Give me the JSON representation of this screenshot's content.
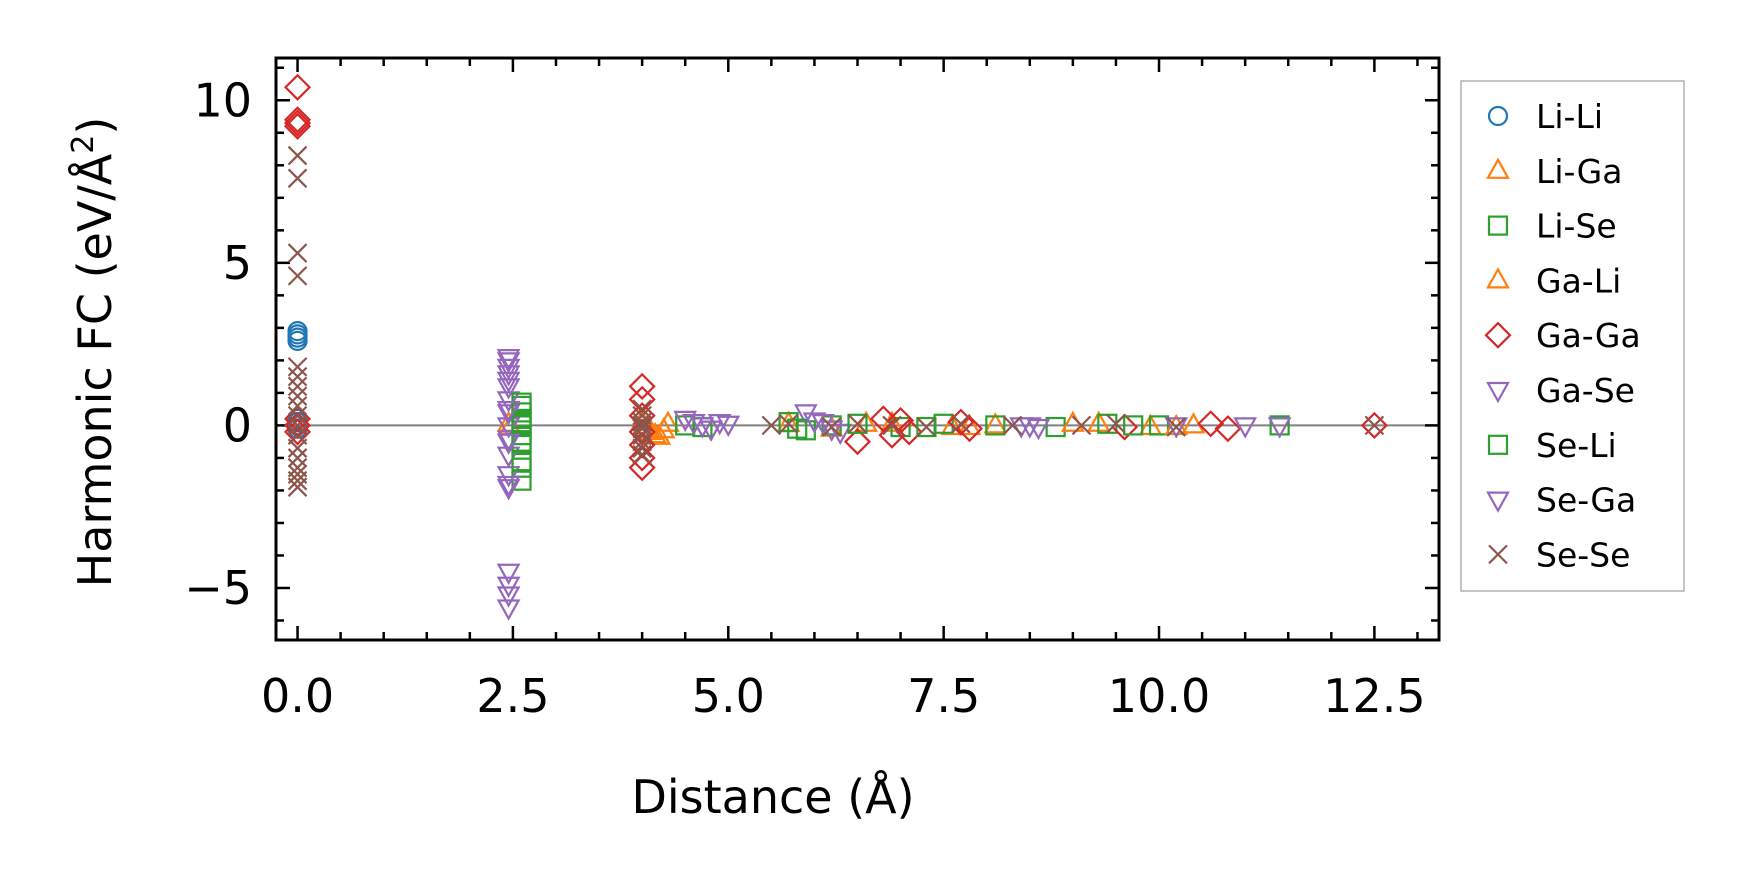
{
  "chart_data": {
    "type": "scatter",
    "xlabel": "Distance (Å)",
    "ylabel": "Harmonic FC (eV/Å²)",
    "ylabel_base": "Harmonic FC (eV/Å",
    "ylabel_sup": "2",
    "ylabel_tail": ")",
    "xlim": [
      -0.25,
      13.25
    ],
    "ylim": [
      -6.6,
      11.3
    ],
    "x_ticks": [
      0.0,
      2.5,
      5.0,
      7.5,
      10.0,
      12.5
    ],
    "x_tick_labels": [
      "0.0",
      "2.5",
      "5.0",
      "7.5",
      "10.0",
      "12.5"
    ],
    "y_ticks": [
      -5,
      0,
      5,
      10
    ],
    "y_tick_labels": [
      "−5",
      "0",
      "5",
      "10"
    ],
    "grid": false,
    "zero_line": true,
    "legend_position": "right-outside",
    "series": [
      {
        "name": "Li-Li",
        "marker": "circle",
        "color": "#1f77b4",
        "x": [
          0.0,
          0.0,
          0.0,
          0.0,
          0.0,
          0.0,
          0.0,
          0.0
        ],
        "y": [
          2.9,
          2.8,
          2.7,
          2.6,
          0.2,
          0.1,
          0.0,
          -0.1
        ]
      },
      {
        "name": "Li-Ga",
        "marker": "triangle-up",
        "color": "#ff7f0e",
        "x": [
          2.45,
          2.47,
          4.0,
          4.1,
          4.2,
          4.3,
          5.7,
          6.2,
          6.9,
          7.6,
          8.1,
          9.3,
          9.9,
          10.4
        ],
        "y": [
          0.05,
          -0.05,
          0.1,
          -0.2,
          -0.35,
          0.05,
          0.05,
          -0.1,
          0.05,
          -0.05,
          0.0,
          0.05,
          -0.05,
          0.0
        ]
      },
      {
        "name": "Li-Se",
        "marker": "square",
        "color": "#2ca02c",
        "x": [
          2.6,
          2.6,
          2.6,
          2.6,
          2.6,
          2.6,
          2.6,
          2.6,
          4.5,
          4.7,
          5.7,
          5.9,
          6.2,
          7.0,
          7.5,
          8.1,
          8.8,
          9.4,
          10.0,
          11.4
        ],
        "y": [
          0.6,
          0.4,
          0.2,
          0.0,
          -0.3,
          -0.6,
          -1.3,
          -1.7,
          0.0,
          -0.05,
          0.1,
          -0.15,
          0.0,
          -0.05,
          0.05,
          0.0,
          -0.05,
          0.05,
          0.0,
          0.0
        ]
      },
      {
        "name": "Ga-Li",
        "marker": "triangle-up",
        "color": "#ff7f0e",
        "x": [
          4.05,
          4.15,
          4.25,
          6.6,
          7.8,
          9.0,
          10.2
        ],
        "y": [
          -0.1,
          -0.3,
          -0.15,
          0.05,
          -0.05,
          0.05,
          -0.05
        ]
      },
      {
        "name": "Ga-Ga",
        "marker": "diamond",
        "color": "#d62728",
        "x": [
          0.0,
          0.0,
          0.0,
          0.0,
          0.0,
          0.0,
          0.0,
          4.0,
          4.0,
          4.0,
          4.0,
          4.0,
          4.0,
          4.0,
          6.5,
          6.8,
          6.9,
          7.0,
          7.1,
          7.7,
          7.8,
          9.6,
          10.6,
          10.8,
          12.5
        ],
        "y": [
          10.4,
          9.4,
          9.3,
          9.2,
          0.2,
          0.0,
          -0.2,
          1.2,
          0.8,
          0.3,
          -0.2,
          -0.6,
          -1.0,
          -1.3,
          -0.5,
          0.2,
          -0.3,
          0.15,
          -0.2,
          0.1,
          -0.1,
          -0.05,
          0.05,
          -0.1,
          0.0
        ]
      },
      {
        "name": "Ga-Se",
        "marker": "triangle-down",
        "color": "#9467bd",
        "x": [
          2.45,
          2.45,
          2.45,
          2.45,
          2.45,
          2.45,
          2.45,
          2.45,
          2.45,
          2.45,
          2.45,
          2.45,
          2.45,
          2.45,
          2.45,
          4.5,
          4.7,
          4.9,
          5.9,
          6.1,
          6.3,
          8.4,
          8.6,
          10.2,
          11.0,
          11.4
        ],
        "y": [
          2.0,
          1.8,
          1.6,
          1.2,
          0.8,
          0.4,
          0.0,
          -0.4,
          -0.9,
          -1.5,
          -1.9,
          -4.5,
          -4.9,
          -5.2,
          -5.6,
          0.2,
          0.0,
          0.1,
          0.4,
          0.1,
          -0.2,
          0.0,
          -0.05,
          0.0,
          0.0,
          0.0
        ]
      },
      {
        "name": "Se-Li",
        "marker": "square",
        "color": "#2ca02c",
        "x": [
          2.6,
          2.6,
          2.6,
          2.6,
          5.8,
          6.5,
          7.3,
          9.7
        ],
        "y": [
          0.7,
          0.1,
          -0.5,
          -1.1,
          -0.1,
          0.05,
          -0.05,
          0.0
        ]
      },
      {
        "name": "Se-Ga",
        "marker": "triangle-down",
        "color": "#9467bd",
        "x": [
          2.45,
          2.45,
          2.45,
          2.45,
          2.45,
          4.6,
          4.8,
          5.0,
          6.0,
          6.2,
          8.5
        ],
        "y": [
          2.1,
          1.4,
          0.5,
          -0.5,
          -1.8,
          0.1,
          -0.1,
          0.05,
          0.15,
          -0.1,
          0.0
        ]
      },
      {
        "name": "Se-Se",
        "marker": "x",
        "color": "#8c564b",
        "x": [
          0.0,
          0.0,
          0.0,
          0.0,
          0.0,
          0.0,
          0.0,
          0.0,
          0.0,
          0.0,
          0.0,
          0.0,
          0.0,
          0.0,
          0.0,
          0.0,
          0.0,
          0.0,
          4.0,
          4.0,
          4.0,
          4.0,
          4.0,
          4.0,
          4.0,
          4.0,
          4.0,
          5.5,
          5.7,
          6.2,
          6.5,
          6.9,
          7.3,
          7.7,
          8.3,
          9.1,
          9.5,
          10.2,
          12.5
        ],
        "y": [
          8.3,
          7.6,
          5.3,
          4.6,
          1.8,
          1.5,
          1.2,
          0.9,
          0.6,
          0.3,
          0.0,
          -0.3,
          -0.7,
          -1.0,
          -1.3,
          -1.5,
          -1.7,
          -1.9,
          0.5,
          0.3,
          0.1,
          -0.1,
          -0.3,
          -0.5,
          -0.7,
          -0.9,
          0.0,
          0.0,
          0.05,
          -0.05,
          0.05,
          0.0,
          -0.05,
          0.05,
          0.0,
          0.0,
          0.05,
          -0.05,
          0.0
        ]
      }
    ]
  }
}
